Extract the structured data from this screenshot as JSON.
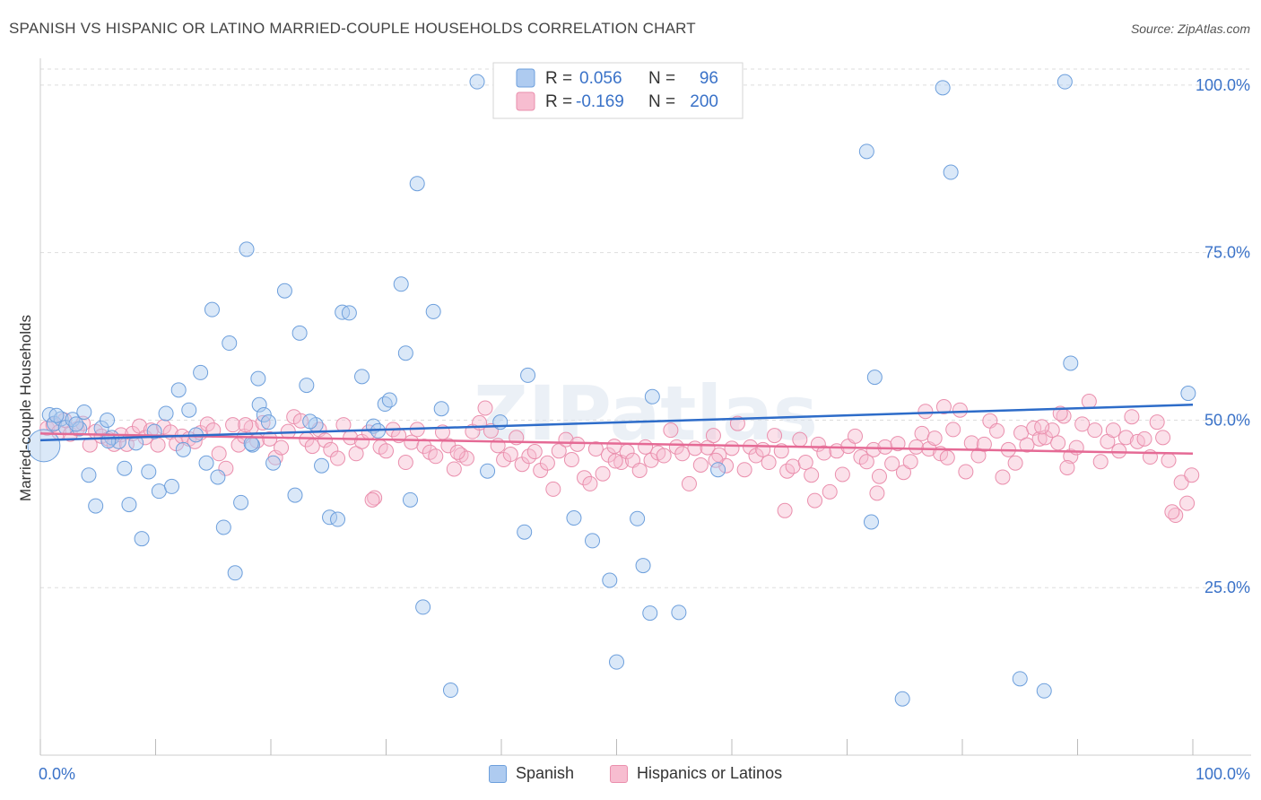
{
  "header": {
    "title": "SPANISH VS HISPANIC OR LATINO MARRIED-COUPLE HOUSEHOLDS CORRELATION CHART",
    "source": "Source: ZipAtlas.com"
  },
  "watermark": "ZIPatlas",
  "legend": {
    "rows": [
      {
        "r_label": "R =",
        "r_value": "0.056",
        "n_label": "N =",
        "n_value": "96"
      },
      {
        "r_label": "R =",
        "r_value": "-0.169",
        "n_label": "N =",
        "n_value": "200"
      }
    ]
  },
  "colors": {
    "spanish_fill": "#aecbf0",
    "spanish_stroke": "#6d9fdc",
    "spanish_line": "#2d6cc9",
    "hispanic_fill": "#f7bdd0",
    "hispanic_stroke": "#ea8fad",
    "hispanic_line": "#e56a95",
    "value_text": "#3a72c8",
    "grid": "#dddddd"
  },
  "chart_data": {
    "type": "scatter",
    "title": "SPANISH VS HISPANIC OR LATINO MARRIED-COUPLE HOUSEHOLDS CORRELATION CHART",
    "xlabel": "",
    "ylabel": "Married-couple Households",
    "xlim": [
      0,
      100
    ],
    "ylim": [
      0,
      104
    ],
    "x_tick_labels": [
      "0.0%",
      "100.0%"
    ],
    "y_ticks": [
      25,
      50,
      75,
      100
    ],
    "y_tick_labels": [
      "25.0%",
      "50.0%",
      "75.0%",
      "100.0%"
    ],
    "grid": true,
    "legend_position": "top-center",
    "series": [
      {
        "name": "Spanish",
        "r": 0.056,
        "n": 96,
        "trend": {
          "x": [
            0,
            100
          ],
          "y": [
            47.0,
            52.3
          ]
        },
        "points": [
          [
            0.3,
            46.2
          ],
          [
            0.8,
            50.8
          ],
          [
            1.2,
            49.5
          ],
          [
            1.8,
            50.2
          ],
          [
            2.2,
            48.9
          ],
          [
            2.8,
            50.1
          ],
          [
            3.4,
            48.7
          ],
          [
            3.8,
            51.2
          ],
          [
            4.2,
            41.8
          ],
          [
            4.8,
            37.2
          ],
          [
            5.3,
            48.8
          ],
          [
            5.8,
            50.0
          ],
          [
            6.2,
            47.4
          ],
          [
            6.8,
            46.8
          ],
          [
            7.3,
            42.8
          ],
          [
            7.7,
            37.4
          ],
          [
            8.3,
            46.6
          ],
          [
            8.8,
            32.3
          ],
          [
            9.4,
            42.3
          ],
          [
            9.9,
            48.3
          ],
          [
            10.3,
            39.4
          ],
          [
            10.9,
            51.0
          ],
          [
            11.4,
            40.1
          ],
          [
            12.0,
            54.5
          ],
          [
            12.4,
            45.6
          ],
          [
            12.9,
            51.5
          ],
          [
            13.5,
            47.8
          ],
          [
            13.9,
            57.1
          ],
          [
            14.4,
            43.6
          ],
          [
            14.9,
            66.5
          ],
          [
            15.4,
            41.5
          ],
          [
            15.9,
            34.0
          ],
          [
            16.4,
            61.5
          ],
          [
            16.9,
            27.2
          ],
          [
            17.4,
            37.7
          ],
          [
            17.9,
            75.5
          ],
          [
            18.4,
            46.3
          ],
          [
            18.9,
            56.2
          ],
          [
            19.0,
            52.3
          ],
          [
            19.4,
            50.8
          ],
          [
            19.8,
            49.7
          ],
          [
            20.2,
            43.6
          ],
          [
            21.2,
            69.3
          ],
          [
            22.1,
            38.8
          ],
          [
            22.5,
            63.0
          ],
          [
            23.1,
            55.2
          ],
          [
            23.9,
            49.3
          ],
          [
            24.4,
            43.2
          ],
          [
            25.1,
            35.5
          ],
          [
            26.2,
            66.1
          ],
          [
            25.8,
            35.2
          ],
          [
            26.8,
            66.0
          ],
          [
            27.9,
            56.5
          ],
          [
            28.9,
            49.1
          ],
          [
            29.3,
            48.4
          ],
          [
            29.9,
            52.4
          ],
          [
            30.3,
            53.0
          ],
          [
            31.3,
            70.3
          ],
          [
            31.7,
            60.0
          ],
          [
            32.1,
            38.1
          ],
          [
            32.7,
            85.3
          ],
          [
            33.2,
            22.1
          ],
          [
            34.1,
            66.2
          ],
          [
            34.8,
            51.7
          ],
          [
            35.6,
            9.7
          ],
          [
            37.9,
            100.5
          ],
          [
            38.8,
            42.4
          ],
          [
            39.9,
            49.7
          ],
          [
            42.0,
            33.3
          ],
          [
            42.3,
            56.7
          ],
          [
            46.3,
            35.4
          ],
          [
            47.9,
            32.0
          ],
          [
            49.4,
            26.1
          ],
          [
            50.0,
            13.9
          ],
          [
            51.8,
            35.3
          ],
          [
            52.3,
            28.3
          ],
          [
            52.9,
            21.2
          ],
          [
            53.1,
            53.5
          ],
          [
            55.4,
            21.3
          ],
          [
            58.8,
            42.6
          ],
          [
            71.7,
            90.1
          ],
          [
            72.1,
            34.8
          ],
          [
            72.4,
            56.4
          ],
          [
            74.8,
            8.4
          ],
          [
            78.3,
            99.6
          ],
          [
            79.0,
            87.0
          ],
          [
            85.0,
            11.4
          ],
          [
            87.1,
            9.6
          ],
          [
            88.9,
            100.5
          ],
          [
            89.4,
            58.5
          ],
          [
            99.6,
            54.0
          ],
          [
            1.4,
            50.7
          ],
          [
            3.1,
            49.4
          ],
          [
            5.9,
            46.9
          ],
          [
            18.3,
            46.5
          ],
          [
            23.4,
            49.8
          ]
        ]
      },
      {
        "name": "Hispanics or Latinos",
        "r": -0.169,
        "n": 200,
        "trend": {
          "x": [
            0,
            100
          ],
          "y": [
            48.0,
            45.0
          ]
        },
        "points": [
          [
            0.6,
            48.8
          ],
          [
            1.1,
            49.3
          ],
          [
            1.6,
            48.2
          ],
          [
            2.1,
            50.0
          ],
          [
            2.6,
            47.9
          ],
          [
            3.2,
            48.7
          ],
          [
            3.7,
            49.5
          ],
          [
            4.3,
            46.3
          ],
          [
            4.8,
            48.3
          ],
          [
            5.3,
            47.6
          ],
          [
            5.9,
            47.2
          ],
          [
            6.4,
            46.4
          ],
          [
            7.0,
            47.8
          ],
          [
            7.5,
            46.4
          ],
          [
            8.0,
            48.0
          ],
          [
            8.6,
            49.1
          ],
          [
            9.1,
            47.4
          ],
          [
            9.6,
            48.5
          ],
          [
            10.2,
            46.3
          ],
          [
            10.7,
            49.0
          ],
          [
            11.3,
            48.2
          ],
          [
            11.8,
            46.5
          ],
          [
            12.3,
            47.6
          ],
          [
            12.9,
            47.2
          ],
          [
            13.4,
            46.8
          ],
          [
            13.9,
            48.1
          ],
          [
            14.5,
            49.4
          ],
          [
            15.0,
            48.5
          ],
          [
            15.5,
            45.0
          ],
          [
            16.1,
            42.8
          ],
          [
            16.7,
            49.3
          ],
          [
            17.2,
            46.3
          ],
          [
            17.7,
            47.6
          ],
          [
            18.3,
            48.9
          ],
          [
            18.8,
            46.9
          ],
          [
            19.3,
            49.6
          ],
          [
            19.9,
            47.2
          ],
          [
            20.4,
            44.4
          ],
          [
            20.9,
            45.9
          ],
          [
            21.5,
            48.3
          ],
          [
            22.0,
            50.5
          ],
          [
            22.6,
            49.9
          ],
          [
            23.1,
            47.1
          ],
          [
            23.6,
            46.1
          ],
          [
            24.2,
            48.6
          ],
          [
            24.7,
            47.0
          ],
          [
            25.2,
            45.6
          ],
          [
            25.8,
            44.3
          ],
          [
            26.3,
            49.3
          ],
          [
            26.9,
            47.4
          ],
          [
            27.4,
            45.0
          ],
          [
            27.9,
            46.8
          ],
          [
            28.5,
            48.2
          ],
          [
            29.0,
            38.4
          ],
          [
            29.5,
            46.0
          ],
          [
            30.0,
            45.4
          ],
          [
            30.6,
            48.6
          ],
          [
            31.1,
            47.7
          ],
          [
            31.7,
            43.7
          ],
          [
            32.2,
            46.7
          ],
          [
            32.7,
            48.6
          ],
          [
            33.3,
            46.1
          ],
          [
            33.8,
            45.2
          ],
          [
            34.3,
            44.6
          ],
          [
            34.9,
            48.2
          ],
          [
            35.4,
            46.2
          ],
          [
            35.9,
            42.7
          ],
          [
            36.5,
            44.8
          ],
          [
            37.0,
            44.3
          ],
          [
            37.5,
            48.3
          ],
          [
            38.1,
            49.6
          ],
          [
            38.6,
            51.8
          ],
          [
            39.1,
            48.4
          ],
          [
            39.7,
            46.2
          ],
          [
            40.2,
            44.1
          ],
          [
            40.8,
            44.9
          ],
          [
            41.3,
            47.4
          ],
          [
            41.8,
            43.4
          ],
          [
            42.4,
            44.6
          ],
          [
            42.9,
            45.3
          ],
          [
            43.4,
            42.5
          ],
          [
            44.0,
            43.6
          ],
          [
            44.5,
            39.7
          ],
          [
            45.0,
            45.4
          ],
          [
            45.6,
            47.1
          ],
          [
            46.1,
            44.1
          ],
          [
            46.6,
            46.4
          ],
          [
            47.2,
            41.4
          ],
          [
            47.7,
            40.5
          ],
          [
            48.2,
            45.7
          ],
          [
            48.8,
            42.0
          ],
          [
            49.3,
            44.8
          ],
          [
            49.8,
            46.1
          ],
          [
            50.4,
            43.7
          ],
          [
            50.9,
            45.3
          ],
          [
            51.4,
            44.0
          ],
          [
            52.0,
            42.5
          ],
          [
            52.5,
            46.0
          ],
          [
            53.0,
            44.0
          ],
          [
            53.6,
            45.1
          ],
          [
            54.1,
            44.7
          ],
          [
            54.7,
            48.5
          ],
          [
            55.2,
            46.0
          ],
          [
            55.7,
            45.0
          ],
          [
            56.3,
            40.5
          ],
          [
            56.8,
            45.8
          ],
          [
            57.3,
            43.3
          ],
          [
            57.9,
            45.9
          ],
          [
            58.4,
            47.7
          ],
          [
            58.9,
            44.8
          ],
          [
            59.5,
            43.2
          ],
          [
            60.0,
            45.8
          ],
          [
            60.5,
            49.5
          ],
          [
            61.1,
            42.6
          ],
          [
            61.6,
            46.0
          ],
          [
            62.1,
            44.7
          ],
          [
            62.7,
            45.6
          ],
          [
            63.2,
            43.7
          ],
          [
            63.7,
            47.7
          ],
          [
            64.3,
            45.4
          ],
          [
            64.8,
            42.4
          ],
          [
            65.3,
            43.1
          ],
          [
            65.9,
            47.1
          ],
          [
            66.4,
            43.7
          ],
          [
            66.9,
            41.8
          ],
          [
            67.5,
            46.4
          ],
          [
            68.0,
            45.1
          ],
          [
            68.5,
            39.3
          ],
          [
            69.1,
            45.4
          ],
          [
            69.6,
            41.9
          ],
          [
            70.1,
            46.1
          ],
          [
            70.7,
            47.6
          ],
          [
            71.2,
            44.5
          ],
          [
            71.7,
            43.8
          ],
          [
            72.3,
            45.6
          ],
          [
            72.8,
            41.6
          ],
          [
            73.3,
            46.0
          ],
          [
            73.9,
            43.5
          ],
          [
            74.4,
            46.5
          ],
          [
            74.9,
            42.2
          ],
          [
            75.5,
            43.8
          ],
          [
            76.0,
            46.0
          ],
          [
            76.5,
            48.0
          ],
          [
            77.1,
            45.7
          ],
          [
            77.6,
            47.3
          ],
          [
            78.1,
            45.0
          ],
          [
            78.7,
            44.4
          ],
          [
            79.2,
            48.6
          ],
          [
            79.8,
            51.5
          ],
          [
            80.3,
            42.3
          ],
          [
            80.8,
            46.6
          ],
          [
            81.4,
            44.7
          ],
          [
            81.9,
            46.4
          ],
          [
            82.4,
            49.9
          ],
          [
            83.0,
            48.4
          ],
          [
            83.5,
            41.5
          ],
          [
            84.0,
            45.6
          ],
          [
            84.6,
            43.6
          ],
          [
            85.1,
            48.1
          ],
          [
            85.6,
            46.3
          ],
          [
            86.2,
            48.8
          ],
          [
            86.7,
            47.2
          ],
          [
            87.2,
            47.4
          ],
          [
            87.8,
            48.5
          ],
          [
            88.3,
            46.6
          ],
          [
            88.8,
            50.6
          ],
          [
            89.4,
            44.6
          ],
          [
            89.9,
            45.9
          ],
          [
            90.4,
            49.4
          ],
          [
            91.0,
            52.8
          ],
          [
            91.5,
            48.5
          ],
          [
            92.0,
            43.8
          ],
          [
            92.6,
            46.8
          ],
          [
            93.1,
            48.5
          ],
          [
            93.6,
            45.4
          ],
          [
            94.2,
            47.4
          ],
          [
            94.7,
            50.5
          ],
          [
            95.2,
            46.8
          ],
          [
            95.8,
            47.2
          ],
          [
            96.3,
            44.5
          ],
          [
            96.9,
            49.7
          ],
          [
            97.4,
            47.4
          ],
          [
            97.9,
            44.0
          ],
          [
            98.5,
            35.8
          ],
          [
            99.0,
            40.7
          ],
          [
            99.5,
            37.6
          ],
          [
            99.9,
            41.8
          ],
          [
            17.8,
            49.3
          ],
          [
            28.8,
            38.1
          ],
          [
            36.2,
            45.2
          ],
          [
            49.9,
            43.9
          ],
          [
            58.6,
            44.0
          ],
          [
            64.6,
            36.5
          ],
          [
            67.2,
            38.0
          ],
          [
            72.6,
            39.1
          ],
          [
            76.8,
            51.3
          ],
          [
            78.4,
            52.0
          ],
          [
            86.9,
            49.0
          ],
          [
            88.5,
            51.0
          ],
          [
            89.1,
            42.9
          ],
          [
            98.2,
            36.3
          ]
        ]
      }
    ]
  },
  "bottom_legend": {
    "items": [
      {
        "label": "Spanish"
      },
      {
        "label": "Hispanics or Latinos"
      }
    ]
  }
}
